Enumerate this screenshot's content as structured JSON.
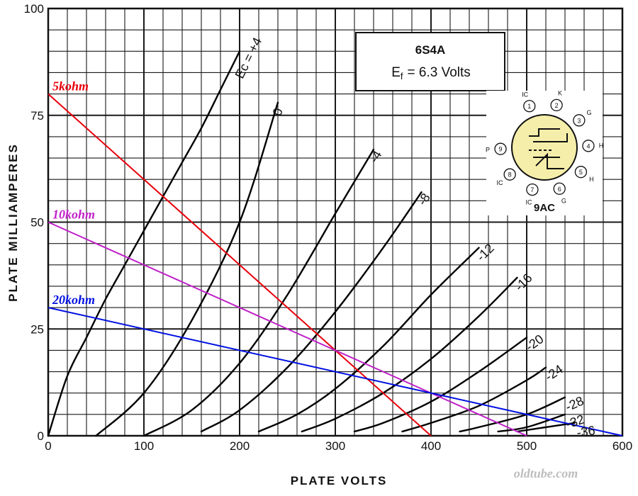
{
  "chart_data": {
    "type": "line",
    "xlabel": "PLATE VOLTS",
    "ylabel": "PLATE MILLIAMPERES",
    "xlim": [
      0,
      600
    ],
    "ylim": [
      0,
      100
    ],
    "x_ticks": [
      "0",
      "100",
      "200",
      "300",
      "400",
      "500",
      "600"
    ],
    "y_ticks": [
      "0",
      "25",
      "50",
      "75",
      "100"
    ],
    "grid": true,
    "series": [
      {
        "name": "Ec = +4",
        "x": [
          0,
          20,
          40,
          60,
          80,
          100,
          120,
          140,
          160,
          180,
          200
        ],
        "y": [
          0,
          14,
          23,
          32,
          40,
          48,
          56,
          64,
          72,
          81,
          90
        ]
      },
      {
        "name": "0",
        "x": [
          50,
          100,
          150,
          200,
          240
        ],
        "y": [
          0,
          10,
          27,
          50,
          78
        ]
      },
      {
        "name": "-4",
        "x": [
          100,
          150,
          200,
          250,
          300,
          340
        ],
        "y": [
          0,
          6,
          17,
          33,
          52,
          67
        ]
      },
      {
        "name": "-8",
        "x": [
          160,
          200,
          250,
          300,
          350,
          390
        ],
        "y": [
          1,
          6,
          16,
          29,
          44,
          57
        ]
      },
      {
        "name": "-12",
        "x": [
          220,
          260,
          300,
          350,
          400,
          450
        ],
        "y": [
          1,
          5,
          11,
          21,
          33,
          44
        ]
      },
      {
        "name": "-16",
        "x": [
          265,
          300,
          350,
          400,
          450,
          490
        ],
        "y": [
          1,
          4,
          10,
          18,
          28,
          37
        ]
      },
      {
        "name": "-20",
        "x": [
          320,
          350,
          400,
          450,
          500
        ],
        "y": [
          1,
          3,
          8,
          15,
          23
        ]
      },
      {
        "name": "-24",
        "x": [
          370,
          400,
          450,
          500,
          520
        ],
        "y": [
          1,
          3,
          7,
          13,
          16
        ]
      },
      {
        "name": "-28",
        "x": [
          430,
          450,
          500,
          540
        ],
        "y": [
          1,
          2,
          5,
          9
        ]
      },
      {
        "name": "-32",
        "x": [
          470,
          500,
          540
        ],
        "y": [
          1,
          2,
          5
        ]
      },
      {
        "name": "-36",
        "x": [
          490,
          520,
          550
        ],
        "y": [
          1,
          2,
          3
        ]
      }
    ],
    "load_lines": [
      {
        "name": "5kohm",
        "color": "#e8000b",
        "x": [
          0,
          400
        ],
        "y": [
          80,
          0
        ]
      },
      {
        "name": "10kohm",
        "color": "#c020c8",
        "x": [
          0,
          500
        ],
        "y": [
          50,
          0
        ]
      },
      {
        "name": "20kohm",
        "color": "#0010e0",
        "x": [
          0,
          600
        ],
        "y": [
          30,
          0
        ]
      }
    ]
  },
  "info_box": {
    "tube": "6S4A",
    "ef_prefix": "E",
    "ef_sub": "f",
    "ef_value": "= 6.3 Volts"
  },
  "base_diagram": {
    "base": "9AC",
    "pins": [
      {
        "num": "1",
        "label": "IC"
      },
      {
        "num": "2",
        "label": "K"
      },
      {
        "num": "3",
        "label": "G"
      },
      {
        "num": "4",
        "label": "H"
      },
      {
        "num": "5",
        "label": "H"
      },
      {
        "num": "6",
        "label": "G"
      },
      {
        "num": "7",
        "label": "IC"
      },
      {
        "num": "8",
        "label": "IC"
      },
      {
        "num": "9",
        "label": "P"
      }
    ]
  },
  "watermark": "oldtube.com",
  "colors": {
    "grid": "#1a1a1a",
    "curve": "#000000",
    "base_fill": "#f5eeaa"
  }
}
